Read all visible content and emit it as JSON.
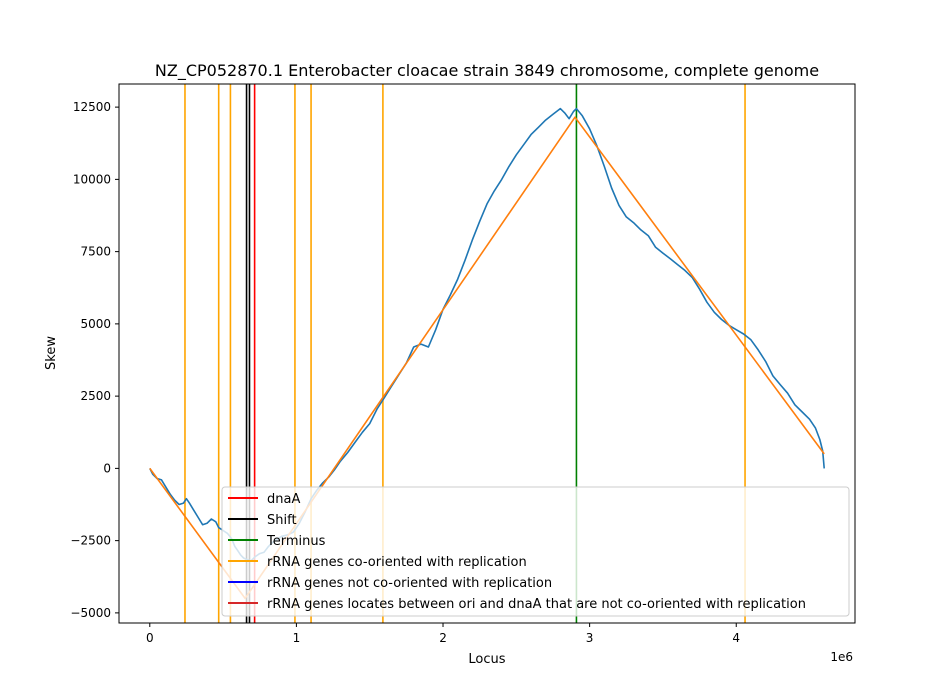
{
  "chart_data": {
    "type": "line",
    "title": "NZ_CP052870.1 Enterobacter cloacae strain 3849 chromosome, complete genome",
    "xlabel": "Locus",
    "ylabel": "Skew",
    "x_offset_label": "1e6",
    "xlim": [
      -210000,
      4810000
    ],
    "ylim": [
      -5350,
      13300
    ],
    "x_ticks": [
      0,
      1000000,
      2000000,
      3000000,
      4000000
    ],
    "x_tick_labels": [
      "0",
      "1",
      "2",
      "3",
      "4"
    ],
    "y_ticks": [
      -5000,
      -2500,
      0,
      2500,
      5000,
      7500,
      10000,
      12500
    ],
    "y_tick_labels": [
      "−5000",
      "−2500",
      "0",
      "2500",
      "5000",
      "7500",
      "10000",
      "12500"
    ],
    "grid": false,
    "legend_position": "lower-right",
    "colors": {
      "skew": "#1f77b4",
      "fit": "#ff7f0e",
      "dnaA": "#ff0000",
      "shift": "#000000",
      "terminus": "#008000",
      "rrna_co": "#ffa500",
      "rrna_not_co": "#0000ff",
      "rrna_between": "#d62728"
    },
    "series": [
      {
        "role": "skew",
        "points": [
          [
            0,
            0
          ],
          [
            20000,
            -200
          ],
          [
            50000,
            -350
          ],
          [
            80000,
            -400
          ],
          [
            110000,
            -650
          ],
          [
            140000,
            -900
          ],
          [
            170000,
            -1100
          ],
          [
            200000,
            -1250
          ],
          [
            230000,
            -1200
          ],
          [
            250000,
            -1050
          ],
          [
            270000,
            -1200
          ],
          [
            300000,
            -1450
          ],
          [
            330000,
            -1700
          ],
          [
            360000,
            -1950
          ],
          [
            390000,
            -1900
          ],
          [
            420000,
            -1750
          ],
          [
            450000,
            -1850
          ],
          [
            470000,
            -2050
          ],
          [
            500000,
            -2150
          ],
          [
            530000,
            -2250
          ],
          [
            560000,
            -2450
          ],
          [
            580000,
            -2700
          ],
          [
            600000,
            -2850
          ],
          [
            620000,
            -3000
          ],
          [
            640000,
            -3100
          ],
          [
            660000,
            -3150
          ],
          [
            690000,
            -3200
          ],
          [
            720000,
            -3050
          ],
          [
            750000,
            -2950
          ],
          [
            780000,
            -2900
          ],
          [
            810000,
            -2700
          ],
          [
            840000,
            -2550
          ],
          [
            870000,
            -2450
          ],
          [
            900000,
            -2350
          ],
          [
            940000,
            -2300
          ],
          [
            980000,
            -2200
          ],
          [
            1020000,
            -1900
          ],
          [
            1060000,
            -1500
          ],
          [
            1100000,
            -1050
          ],
          [
            1140000,
            -750
          ],
          [
            1180000,
            -500
          ],
          [
            1220000,
            -300
          ],
          [
            1260000,
            -50
          ],
          [
            1300000,
            250
          ],
          [
            1350000,
            550
          ],
          [
            1400000,
            900
          ],
          [
            1450000,
            1250
          ],
          [
            1500000,
            1550
          ],
          [
            1550000,
            2050
          ],
          [
            1600000,
            2450
          ],
          [
            1650000,
            2850
          ],
          [
            1700000,
            3250
          ],
          [
            1750000,
            3650
          ],
          [
            1800000,
            4200
          ],
          [
            1850000,
            4300
          ],
          [
            1900000,
            4200
          ],
          [
            1950000,
            4800
          ],
          [
            2000000,
            5500
          ],
          [
            2050000,
            6000
          ],
          [
            2100000,
            6550
          ],
          [
            2150000,
            7200
          ],
          [
            2200000,
            7900
          ],
          [
            2250000,
            8550
          ],
          [
            2300000,
            9150
          ],
          [
            2350000,
            9600
          ],
          [
            2400000,
            10000
          ],
          [
            2450000,
            10450
          ],
          [
            2500000,
            10850
          ],
          [
            2550000,
            11200
          ],
          [
            2600000,
            11550
          ],
          [
            2650000,
            11800
          ],
          [
            2700000,
            12050
          ],
          [
            2750000,
            12250
          ],
          [
            2800000,
            12450
          ],
          [
            2830000,
            12300
          ],
          [
            2860000,
            12100
          ],
          [
            2890000,
            12350
          ],
          [
            2910000,
            12450
          ],
          [
            2950000,
            12200
          ],
          [
            3000000,
            11750
          ],
          [
            3050000,
            11150
          ],
          [
            3100000,
            10450
          ],
          [
            3150000,
            9700
          ],
          [
            3200000,
            9100
          ],
          [
            3250000,
            8700
          ],
          [
            3300000,
            8500
          ],
          [
            3350000,
            8250
          ],
          [
            3400000,
            8050
          ],
          [
            3450000,
            7650
          ],
          [
            3500000,
            7450
          ],
          [
            3550000,
            7250
          ],
          [
            3600000,
            7050
          ],
          [
            3650000,
            6850
          ],
          [
            3700000,
            6600
          ],
          [
            3750000,
            6200
          ],
          [
            3800000,
            5750
          ],
          [
            3850000,
            5400
          ],
          [
            3900000,
            5150
          ],
          [
            3950000,
            4950
          ],
          [
            4000000,
            4800
          ],
          [
            4050000,
            4650
          ],
          [
            4100000,
            4450
          ],
          [
            4150000,
            4100
          ],
          [
            4200000,
            3700
          ],
          [
            4250000,
            3200
          ],
          [
            4300000,
            2900
          ],
          [
            4350000,
            2600
          ],
          [
            4400000,
            2200
          ],
          [
            4450000,
            1950
          ],
          [
            4500000,
            1700
          ],
          [
            4540000,
            1400
          ],
          [
            4570000,
            1000
          ],
          [
            4590000,
            600
          ],
          [
            4600000,
            0
          ]
        ]
      },
      {
        "role": "fit",
        "points": [
          [
            0,
            0
          ],
          [
            650000,
            -4500
          ],
          [
            2900000,
            12150
          ],
          [
            4600000,
            500
          ]
        ]
      }
    ],
    "vertical_lines": [
      {
        "x": 240000,
        "kind": "rrna_co"
      },
      {
        "x": 470000,
        "kind": "rrna_co"
      },
      {
        "x": 550000,
        "kind": "rrna_co"
      },
      {
        "x": 990000,
        "kind": "rrna_co"
      },
      {
        "x": 1100000,
        "kind": "rrna_co"
      },
      {
        "x": 1590000,
        "kind": "rrna_co"
      },
      {
        "x": 4060000,
        "kind": "rrna_co"
      },
      {
        "x": 660000,
        "kind": "shift"
      },
      {
        "x": 680000,
        "kind": "shift"
      },
      {
        "x": 715000,
        "kind": "dnaA"
      },
      {
        "x": 2910000,
        "kind": "terminus"
      }
    ],
    "legend": [
      {
        "label": "dnaA",
        "color": "#ff0000"
      },
      {
        "label": "Shift",
        "color": "#000000"
      },
      {
        "label": "Terminus",
        "color": "#008000"
      },
      {
        "label": "rRNA genes co-oriented with replication",
        "color": "#ffa500"
      },
      {
        "label": "rRNA genes not co-oriented with replication",
        "color": "#0000ff"
      },
      {
        "label": "rRNA genes locates between ori and dnaA that are not co-oriented with replication",
        "color": "#d62728"
      }
    ]
  }
}
